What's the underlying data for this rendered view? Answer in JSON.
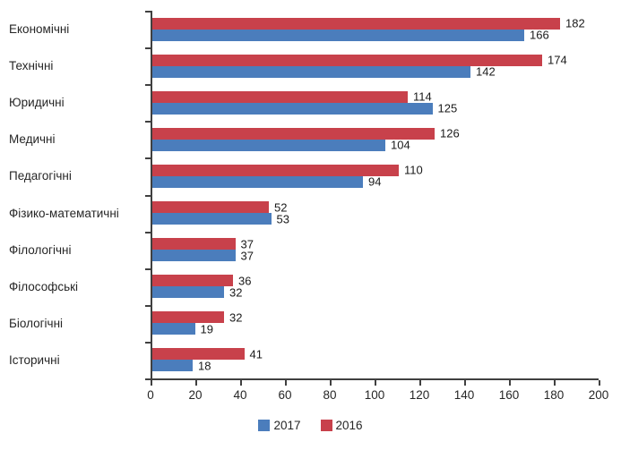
{
  "chart_data": {
    "type": "bar",
    "orientation": "horizontal",
    "title": "",
    "xlabel": "",
    "ylabel": "",
    "categories": [
      "Економічні",
      "Технічні",
      "Юридичні",
      "Медичні",
      "Педагогічні",
      "Фізико-математичні",
      "Філологічні",
      "Філософські",
      "Біологічні",
      "Історичні"
    ],
    "series": [
      {
        "name": "2016",
        "color": "#C8414B",
        "values": [
          182,
          174,
          114,
          126,
          110,
          52,
          37,
          36,
          32,
          41
        ]
      },
      {
        "name": "2017",
        "color": "#4B7DBC",
        "values": [
          166,
          142,
          125,
          104,
          94,
          53,
          37,
          32,
          19,
          18
        ]
      }
    ],
    "bar_order_top_to_bottom": [
      "2016",
      "2017"
    ],
    "xlim": [
      0,
      200
    ],
    "xticks": [
      0,
      20,
      40,
      60,
      80,
      100,
      120,
      140,
      160,
      180,
      200
    ],
    "grid": false,
    "value_labels": true,
    "legend": [
      {
        "label": "2017",
        "color": "#4B7DBC"
      },
      {
        "label": "2016",
        "color": "#C8414B"
      }
    ],
    "legend_position": "bottom-center",
    "axis_color": "#404040",
    "text_color": "#262626"
  }
}
